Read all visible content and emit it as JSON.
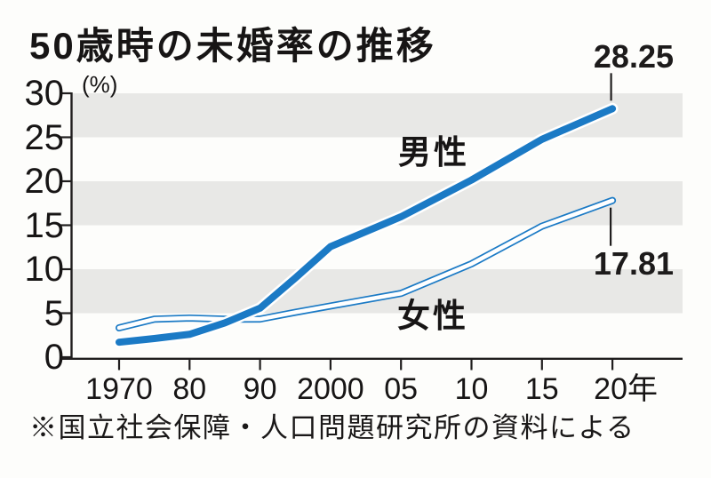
{
  "title": "50歳時の未婚率の推移",
  "unit_label": "(%)",
  "source_note": "※国立社会保障・人口問題研究所の資料による",
  "series_labels": {
    "men": "男性",
    "women": "女性"
  },
  "annotations": {
    "men_final_value": "28.25",
    "women_final_value": "17.81"
  },
  "colors": {
    "line_blue": "#1b7ac5",
    "band_gray": "#e8e8e6",
    "axis_black": "#201e1e",
    "text_black": "#171515",
    "background": "#fdfdfb",
    "casing_white": "#ffffff"
  },
  "chart_data": {
    "type": "line",
    "title": "50歳時の未婚率の推移",
    "ylabel": "(%)",
    "ylim": [
      0,
      30
    ],
    "yticks": [
      0,
      5,
      10,
      15,
      20,
      25,
      30
    ],
    "band_rows_gray": [
      [
        5,
        10
      ],
      [
        15,
        20
      ],
      [
        25,
        30
      ]
    ],
    "grid": "alternating-horizontal-bands",
    "legend_position": "inline-on-chart",
    "x_years": [
      1970,
      1975,
      1980,
      1985,
      1990,
      1995,
      2000,
      2005,
      2010,
      2015,
      2020
    ],
    "xticks": [
      {
        "year": 1970,
        "label": "1970"
      },
      {
        "year": 1980,
        "label": "80"
      },
      {
        "year": 1990,
        "label": "90"
      },
      {
        "year": 2000,
        "label": "2000"
      },
      {
        "year": 2005,
        "label": "05"
      },
      {
        "year": 2010,
        "label": "10"
      },
      {
        "year": 2015,
        "label": "15"
      },
      {
        "year": 2020,
        "label": "20年"
      }
    ],
    "series": [
      {
        "name": "男性",
        "style": "thick-solid-blue",
        "values": [
          1.7,
          2.12,
          2.6,
          3.89,
          5.57,
          9.0,
          12.57,
          15.96,
          20.14,
          24.77,
          28.25
        ],
        "final_label": "28.25"
      },
      {
        "name": "女性",
        "style": "thin-outline-blue",
        "values": [
          3.33,
          4.32,
          4.45,
          4.32,
          4.33,
          5.1,
          5.82,
          7.25,
          10.61,
          14.89,
          17.81
        ],
        "final_label": "17.81"
      }
    ]
  }
}
